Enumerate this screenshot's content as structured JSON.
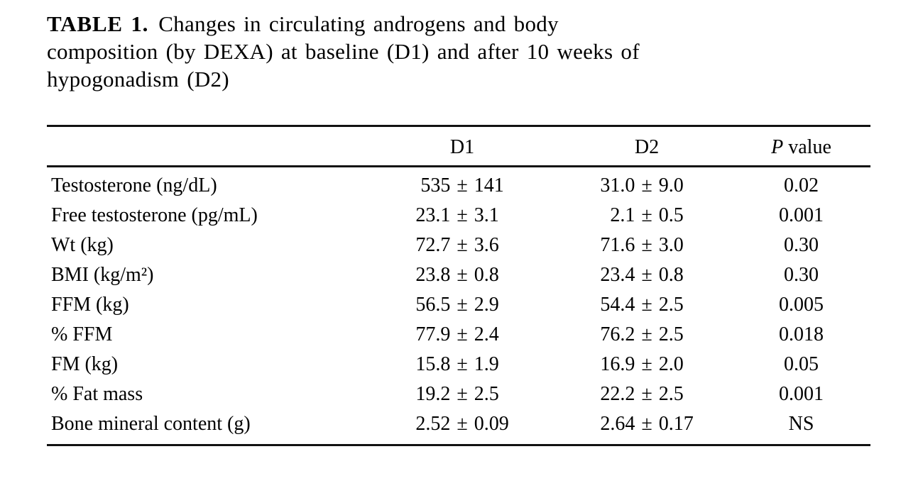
{
  "page": {
    "background": "#ffffff",
    "text_color": "#000000"
  },
  "caption": {
    "label": "TABLE 1.",
    "line1": "Changes in circulating androgens and body",
    "line2": "composition (by DEXA) at baseline (D1) and after 10 weeks of",
    "line3": "hypogonadism (D2)"
  },
  "table": {
    "pm": "±",
    "header": {
      "empty": "",
      "d1": "D1",
      "d2": "D2",
      "p_italic": "P",
      "p_rest": "value"
    },
    "rows": [
      {
        "label": "Testosterone (ng/dL)",
        "d1": {
          "mean": "535",
          "sd": "141"
        },
        "d2": {
          "mean": "31.0",
          "sd": "9.0"
        },
        "p": "0.02"
      },
      {
        "label": "Free testosterone (pg/mL)",
        "d1": {
          "mean": "23.1",
          "sd": "3.1"
        },
        "d2": {
          "mean": "2.1",
          "sd": "0.5"
        },
        "p": "0.001"
      },
      {
        "label": "Wt (kg)",
        "d1": {
          "mean": "72.7",
          "sd": "3.6"
        },
        "d2": {
          "mean": "71.6",
          "sd": "3.0"
        },
        "p": "0.30"
      },
      {
        "label": "BMI (kg/m²)",
        "d1": {
          "mean": "23.8",
          "sd": "0.8"
        },
        "d2": {
          "mean": "23.4",
          "sd": "0.8"
        },
        "p": "0.30"
      },
      {
        "label": "FFM (kg)",
        "d1": {
          "mean": "56.5",
          "sd": "2.9"
        },
        "d2": {
          "mean": "54.4",
          "sd": "2.5"
        },
        "p": "0.005"
      },
      {
        "label": "% FFM",
        "d1": {
          "mean": "77.9",
          "sd": "2.4"
        },
        "d2": {
          "mean": "76.2",
          "sd": "2.5"
        },
        "p": "0.018"
      },
      {
        "label": "FM (kg)",
        "d1": {
          "mean": "15.8",
          "sd": "1.9"
        },
        "d2": {
          "mean": "16.9",
          "sd": "2.0"
        },
        "p": "0.05"
      },
      {
        "label": "% Fat mass",
        "d1": {
          "mean": "19.2",
          "sd": "2.5"
        },
        "d2": {
          "mean": "22.2",
          "sd": "2.5"
        },
        "p": "0.001"
      },
      {
        "label": "Bone mineral content (g)",
        "d1": {
          "mean": "2.52",
          "sd": "0.09"
        },
        "d2": {
          "mean": "2.64",
          "sd": "0.17"
        },
        "p": "NS"
      }
    ]
  },
  "chart_data": {
    "type": "table",
    "title": "TABLE 1. Changes in circulating androgens and body composition (by DEXA) at baseline (D1) and after 10 weeks of hypogonadism (D2)",
    "columns": [
      "",
      "D1",
      "D2",
      "P value"
    ],
    "rows": [
      [
        "Testosterone (ng/dL)",
        "535 ± 141",
        "31.0 ± 9.0",
        "0.02"
      ],
      [
        "Free testosterone (pg/mL)",
        "23.1 ± 3.1",
        "2.1 ± 0.5",
        "0.001"
      ],
      [
        "Wt (kg)",
        "72.7 ± 3.6",
        "71.6 ± 3.0",
        "0.30"
      ],
      [
        "BMI (kg/m²)",
        "23.8 ± 0.8",
        "23.4 ± 0.8",
        "0.30"
      ],
      [
        "FFM (kg)",
        "56.5 ± 2.9",
        "54.4 ± 2.5",
        "0.005"
      ],
      [
        "% FFM",
        "77.9 ± 2.4",
        "76.2 ± 2.5",
        "0.018"
      ],
      [
        "FM (kg)",
        "15.8 ± 1.9",
        "16.9 ± 2.0",
        "0.05"
      ],
      [
        "% Fat mass",
        "19.2 ± 2.5",
        "22.2 ± 2.5",
        "0.001"
      ],
      [
        "Bone mineral content (g)",
        "2.52 ± 0.09",
        "2.64 ± 0.17",
        "NS"
      ]
    ]
  }
}
